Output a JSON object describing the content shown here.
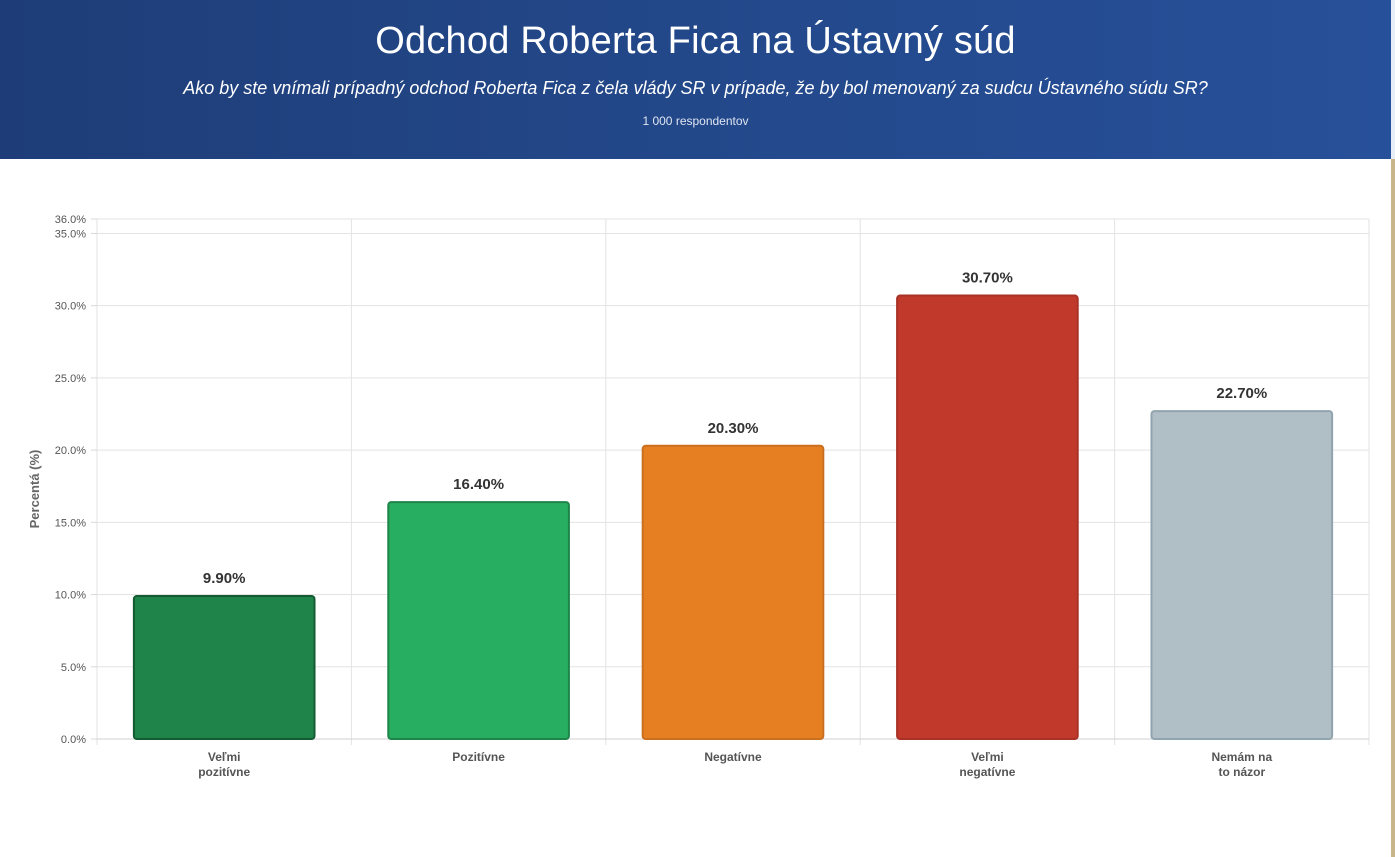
{
  "header": {
    "title": "Odchod Roberta Fica na Ústavný súd",
    "subtitle": "Ako by ste vnímali prípadný odchod Roberta Fica z čela vlády SR v prípade, že by bol menovaný za sudcu Ústavného súdu SR?",
    "respondents": "1 000 respondentov"
  },
  "chart_data": {
    "type": "bar",
    "ylabel": "Percentá (%)",
    "xlabel": "",
    "ylim": [
      0,
      36
    ],
    "y_ticks": [
      0,
      5,
      10,
      15,
      20,
      25,
      30,
      35,
      36
    ],
    "y_tick_labels": [
      "0.0%",
      "5.0%",
      "10.0%",
      "15.0%",
      "20.0%",
      "25.0%",
      "30.0%",
      "35.0%",
      "36.0%"
    ],
    "grid": true,
    "categories": [
      [
        "Veľmi",
        "pozitívne"
      ],
      [
        "Pozitívne"
      ],
      [
        "Negatívne"
      ],
      [
        "Veľmi",
        "negatívne"
      ],
      [
        "Nemám na",
        "to názor"
      ]
    ],
    "values": [
      9.9,
      16.4,
      20.3,
      30.7,
      22.7
    ],
    "data_labels": [
      "9.90%",
      "16.40%",
      "20.30%",
      "30.70%",
      "22.70%"
    ],
    "colors": [
      "#1e8449",
      "#27ae60",
      "#e67e22",
      "#c0392b",
      "#b0bec5"
    ],
    "border_colors": [
      "#145a32",
      "#1e8449",
      "#ca6f1e",
      "#a93226",
      "#90a4ae"
    ]
  }
}
